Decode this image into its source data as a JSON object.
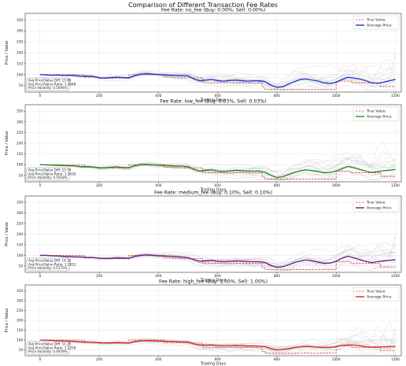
{
  "figure": {
    "title": "Comparison of Different Transaction Fee Rates"
  },
  "chart_data": [
    {
      "type": "line",
      "title": "Fee Rate: no_fee (Buy: 0.00%, Sell: 0.00%)",
      "xlabel": "Trading Days",
      "ylabel": "Price / Value",
      "xlim": [
        -50,
        1220
      ],
      "ylim": [
        20,
        380
      ],
      "x_ticks": [
        0,
        200,
        400,
        600,
        800,
        1000,
        1200
      ],
      "y_ticks": [
        50,
        100,
        150,
        200,
        250,
        300,
        350
      ],
      "grid": true,
      "legend_position": "top-right",
      "series": [
        {
          "name": "True Value",
          "style": "dashed",
          "color": "#e03b3b",
          "x": [
            0,
            150,
            150,
            200,
            200,
            300,
            300,
            420,
            420,
            450,
            450,
            550,
            550,
            750,
            750,
            760,
            760,
            1000,
            1000,
            1050,
            1050,
            1150,
            1150,
            1200
          ],
          "y": [
            100,
            100,
            88,
            88,
            84,
            84,
            100,
            100,
            88,
            88,
            85,
            85,
            62,
            62,
            42,
            42,
            33,
            33,
            70,
            70,
            62,
            62,
            45,
            45
          ]
        },
        {
          "name": "Average Price",
          "style": "solid",
          "color": "#1f2fd6",
          "x": [
            0,
            20,
            40,
            60,
            80,
            100,
            120,
            140,
            160,
            180,
            200,
            220,
            240,
            260,
            280,
            300,
            320,
            340,
            360,
            380,
            400,
            420,
            440,
            460,
            480,
            500,
            520,
            540,
            560,
            580,
            600,
            620,
            640,
            660,
            680,
            700,
            720,
            740,
            760,
            780,
            800,
            820,
            840,
            860,
            880,
            900,
            920,
            940,
            960,
            980,
            1000,
            1020,
            1040,
            1060,
            1080,
            1100,
            1120,
            1140,
            1160,
            1180,
            1200
          ],
          "y": [
            100,
            99,
            97,
            98,
            96,
            97,
            95,
            92,
            93,
            91,
            85,
            84,
            86,
            88,
            86,
            85,
            95,
            102,
            104,
            102,
            100,
            98,
            97,
            96,
            95,
            94,
            80,
            72,
            75,
            78,
            72,
            70,
            73,
            75,
            72,
            70,
            71,
            72,
            68,
            52,
            42,
            45,
            58,
            68,
            78,
            80,
            75,
            70,
            62,
            60,
            65,
            78,
            88,
            84,
            80,
            72,
            62,
            60,
            65,
            72,
            78
          ]
        }
      ],
      "annotation": {
        "lines": [
          "Avg Price/Value Diff: 13.99",
          "Avg Price/Value Ratio: 1.2848",
          "Price Volatility: 0.5694%"
        ]
      }
    },
    {
      "type": "line",
      "title": "Fee Rate: low_fee (Buy: 0.03%, Sell: 0.03%)",
      "xlabel": "Trading Days",
      "ylabel": "Price / Value",
      "xlim": [
        -50,
        1220
      ],
      "ylim": [
        20,
        380
      ],
      "x_ticks": [
        0,
        200,
        400,
        600,
        800,
        1000,
        1200
      ],
      "y_ticks": [
        50,
        100,
        150,
        200,
        250,
        300,
        350
      ],
      "grid": true,
      "legend_position": "top-right",
      "series": [
        {
          "name": "True Value",
          "style": "dashed",
          "color": "#e03b3b",
          "x": [
            0,
            150,
            150,
            200,
            200,
            300,
            300,
            420,
            420,
            450,
            450,
            550,
            550,
            750,
            750,
            760,
            760,
            1000,
            1000,
            1050,
            1050,
            1150,
            1150,
            1200
          ],
          "y": [
            100,
            100,
            88,
            88,
            84,
            84,
            100,
            100,
            88,
            88,
            85,
            85,
            62,
            62,
            42,
            42,
            33,
            33,
            70,
            70,
            62,
            62,
            45,
            45
          ]
        },
        {
          "name": "Average Price",
          "style": "solid",
          "color": "#1e8a1e",
          "x": [
            0,
            20,
            40,
            60,
            80,
            100,
            120,
            140,
            160,
            180,
            200,
            220,
            240,
            260,
            280,
            300,
            320,
            340,
            360,
            380,
            400,
            420,
            440,
            460,
            480,
            500,
            520,
            540,
            560,
            580,
            600,
            620,
            640,
            660,
            680,
            700,
            720,
            740,
            760,
            780,
            800,
            820,
            840,
            860,
            880,
            900,
            920,
            940,
            960,
            980,
            1000,
            1020,
            1040,
            1060,
            1080,
            1100,
            1120,
            1140,
            1160,
            1180,
            1200
          ],
          "y": [
            100,
            99,
            98,
            97,
            96,
            95,
            94,
            90,
            91,
            89,
            85,
            86,
            88,
            90,
            87,
            86,
            96,
            101,
            102,
            100,
            98,
            97,
            95,
            94,
            93,
            90,
            78,
            70,
            74,
            76,
            70,
            68,
            71,
            74,
            72,
            70,
            70,
            71,
            65,
            50,
            40,
            44,
            55,
            64,
            72,
            76,
            72,
            68,
            62,
            64,
            70,
            82,
            92,
            86,
            78,
            70,
            64,
            68,
            72,
            74,
            78
          ]
        }
      ],
      "annotation": {
        "lines": [
          "Avg Price/Value Diff: 13.74",
          "Avg Price/Value Ratio: 1.2630",
          "Price Volatility: 0.5418%"
        ]
      }
    },
    {
      "type": "line",
      "title": "Fee Rate: medium_fee (Buy: 0.10%, Sell: 0.10%)",
      "xlabel": "Trading Days",
      "ylabel": "Price / Value",
      "xlim": [
        -50,
        1220
      ],
      "ylim": [
        20,
        380
      ],
      "x_ticks": [
        0,
        200,
        400,
        600,
        800,
        1000,
        1200
      ],
      "y_ticks": [
        50,
        100,
        150,
        200,
        250,
        300,
        350
      ],
      "grid": true,
      "legend_position": "top-right",
      "series": [
        {
          "name": "True Value",
          "style": "dashed",
          "color": "#e03b3b",
          "x": [
            0,
            150,
            150,
            200,
            200,
            300,
            300,
            420,
            420,
            450,
            450,
            550,
            550,
            750,
            750,
            760,
            760,
            1000,
            1000,
            1050,
            1050,
            1150,
            1150,
            1200
          ],
          "y": [
            100,
            100,
            88,
            88,
            84,
            84,
            100,
            100,
            88,
            88,
            85,
            85,
            62,
            62,
            42,
            42,
            33,
            33,
            70,
            70,
            62,
            62,
            45,
            45
          ]
        },
        {
          "name": "Average Price",
          "style": "solid",
          "color": "#6a1b8a",
          "x": [
            0,
            20,
            40,
            60,
            80,
            100,
            120,
            140,
            160,
            180,
            200,
            220,
            240,
            260,
            280,
            300,
            320,
            340,
            360,
            380,
            400,
            420,
            440,
            460,
            480,
            500,
            520,
            540,
            560,
            580,
            600,
            620,
            640,
            660,
            680,
            700,
            720,
            740,
            760,
            780,
            800,
            820,
            840,
            860,
            880,
            900,
            920,
            940,
            960,
            980,
            1000,
            1020,
            1040,
            1060,
            1080,
            1100,
            1120,
            1140,
            1160,
            1180,
            1200
          ],
          "y": [
            100,
            100,
            98,
            97,
            95,
            94,
            93,
            92,
            90,
            89,
            86,
            85,
            86,
            88,
            87,
            86,
            95,
            100,
            102,
            100,
            98,
            97,
            96,
            94,
            92,
            90,
            80,
            72,
            74,
            76,
            72,
            70,
            72,
            74,
            73,
            71,
            70,
            70,
            66,
            52,
            44,
            46,
            55,
            66,
            74,
            78,
            74,
            68,
            62,
            64,
            72,
            86,
            96,
            88,
            80,
            72,
            66,
            70,
            74,
            76,
            80
          ]
        }
      ],
      "annotation": {
        "lines": [
          "Avg Price/Value Diff: 14.32",
          "Avg Price/Value Ratio: 1.2813",
          "Price Volatility: 0.5175%"
        ]
      }
    },
    {
      "type": "line",
      "title": "Fee Rate: high_fee (Buy: 1.00%, Sell: 1.00%)",
      "xlabel": "Trading Days",
      "ylabel": "Price / Value",
      "xlim": [
        -50,
        1220
      ],
      "ylim": [
        20,
        380
      ],
      "x_ticks": [
        0,
        200,
        400,
        600,
        800,
        1000,
        1200
      ],
      "y_ticks": [
        50,
        100,
        150,
        200,
        250,
        300,
        350
      ],
      "grid": true,
      "legend_position": "top-right",
      "series": [
        {
          "name": "True Value",
          "style": "dashed",
          "color": "#e03b3b",
          "x": [
            0,
            150,
            150,
            200,
            200,
            300,
            300,
            420,
            420,
            450,
            450,
            550,
            550,
            750,
            750,
            760,
            760,
            1000,
            1000,
            1050,
            1050,
            1150,
            1150,
            1200
          ],
          "y": [
            100,
            100,
            88,
            88,
            84,
            84,
            100,
            100,
            88,
            88,
            85,
            85,
            62,
            62,
            42,
            42,
            33,
            33,
            70,
            70,
            62,
            62,
            45,
            45
          ]
        },
        {
          "name": "Average Price",
          "style": "solid",
          "color": "#e01e1e",
          "x": [
            0,
            20,
            40,
            60,
            80,
            100,
            120,
            140,
            160,
            180,
            200,
            220,
            240,
            260,
            280,
            300,
            320,
            340,
            360,
            380,
            400,
            420,
            440,
            460,
            480,
            500,
            520,
            540,
            560,
            580,
            600,
            620,
            640,
            660,
            680,
            700,
            720,
            740,
            760,
            780,
            800,
            820,
            840,
            860,
            880,
            900,
            920,
            940,
            960,
            980,
            1000,
            1020,
            1040,
            1060,
            1080,
            1100,
            1120,
            1140,
            1160,
            1180,
            1200
          ],
          "y": [
            100,
            99,
            98,
            96,
            95,
            94,
            92,
            90,
            89,
            88,
            86,
            85,
            86,
            87,
            86,
            85,
            92,
            96,
            97,
            96,
            95,
            94,
            93,
            92,
            91,
            90,
            80,
            74,
            74,
            75,
            72,
            71,
            72,
            73,
            72,
            70,
            70,
            69,
            66,
            56,
            50,
            52,
            56,
            62,
            66,
            68,
            66,
            64,
            62,
            63,
            66,
            72,
            76,
            74,
            70,
            66,
            64,
            65,
            66,
            66,
            68
          ]
        }
      ],
      "annotation": {
        "lines": [
          "Avg Price/Value Diff: 12.25",
          "Avg Price/Value Ratio: 1.2258",
          "Price Volatility: 0.4939%"
        ]
      }
    }
  ]
}
